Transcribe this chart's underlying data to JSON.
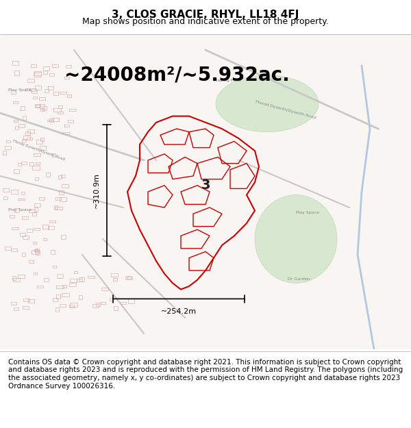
{
  "title_line1": "3, CLOS GRACIE, RHYL, LL18 4FJ",
  "title_line2": "Map shows position and indicative extent of the property.",
  "area_text": "~24008m²/~5.932ac.",
  "width_text": "~254.2m",
  "height_text": "~310.9m",
  "plot_number": "3",
  "footer_text": "Contains OS data © Crown copyright and database right 2021. This information is subject to Crown copyright and database rights 2023 and is reproduced with the permission of HM Land Registry. The polygons (including the associated geometry, namely x, y co-ordinates) are subject to Crown copyright and database rights 2023 Ordnance Survey 100026316.",
  "bg_color": "#ffffff",
  "map_bg": "#f5f5f5",
  "street_color": "#e8c8c8",
  "highlight_color": "#cc0000",
  "highlight_fill": "none",
  "green_area_color": "#d8e8d0",
  "title_fontsize": 11,
  "subtitle_fontsize": 9,
  "area_fontsize": 20,
  "footer_fontsize": 7.5,
  "figsize": [
    6.0,
    6.25
  ],
  "dpi": 100
}
